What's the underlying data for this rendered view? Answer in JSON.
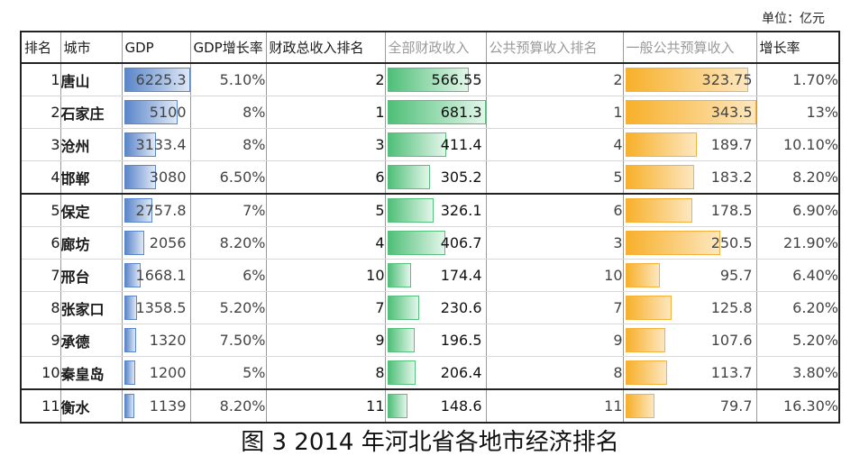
{
  "unit_label": "单位：亿元",
  "caption": "图 3   2014 年河北省各地市经济排名",
  "headers": [
    "排名",
    "城市",
    "GDP",
    "GDP增长率",
    "财政总收入排名",
    "全部财政收入",
    "公共预算收入排名",
    "一般公共预算收入",
    "增长率"
  ],
  "colors": {
    "gdp_bar": "#5b86c9",
    "revenue_bar": "#4fbf78",
    "budget_bar": "#f7b02a"
  },
  "rows": [
    {
      "rank": "1",
      "city": "唐山",
      "gdp": "6225.3",
      "gdp_growth": "5.10%",
      "fiscal_rank": "2",
      "total_revenue": "566.55",
      "budget_rank": "2",
      "budget_revenue": "323.75",
      "growth": "1.70%"
    },
    {
      "rank": "2",
      "city": "石家庄",
      "gdp": "5100",
      "gdp_growth": "8%",
      "fiscal_rank": "1",
      "total_revenue": "681.3",
      "budget_rank": "1",
      "budget_revenue": "343.5",
      "growth": "13%"
    },
    {
      "rank": "3",
      "city": "沧州",
      "gdp": "3133.4",
      "gdp_growth": "8%",
      "fiscal_rank": "3",
      "total_revenue": "411.4",
      "budget_rank": "4",
      "budget_revenue": "189.7",
      "growth": "10.10%"
    },
    {
      "rank": "4",
      "city": "邯郸",
      "gdp": "3080",
      "gdp_growth": "6.50%",
      "fiscal_rank": "6",
      "total_revenue": "305.2",
      "budget_rank": "5",
      "budget_revenue": "183.2",
      "growth": "8.20%"
    },
    {
      "rank": "5",
      "city": "保定",
      "gdp": "2757.8",
      "gdp_growth": "7%",
      "fiscal_rank": "5",
      "total_revenue": "326.1",
      "budget_rank": "6",
      "budget_revenue": "178.5",
      "growth": "6.90%"
    },
    {
      "rank": "6",
      "city": "廊坊",
      "gdp": "2056",
      "gdp_growth": "8.20%",
      "fiscal_rank": "4",
      "total_revenue": "406.7",
      "budget_rank": "3",
      "budget_revenue": "250.5",
      "growth": "21.90%"
    },
    {
      "rank": "7",
      "city": "邢台",
      "gdp": "1668.1",
      "gdp_growth": "6%",
      "fiscal_rank": "10",
      "total_revenue": "174.4",
      "budget_rank": "10",
      "budget_revenue": "95.7",
      "growth": "6.40%"
    },
    {
      "rank": "8",
      "city": "张家口",
      "gdp": "1358.5",
      "gdp_growth": "5.20%",
      "fiscal_rank": "7",
      "total_revenue": "230.6",
      "budget_rank": "7",
      "budget_revenue": "125.8",
      "growth": "6.20%"
    },
    {
      "rank": "9",
      "city": "承德",
      "gdp": "1320",
      "gdp_growth": "7.50%",
      "fiscal_rank": "9",
      "total_revenue": "196.5",
      "budget_rank": "9",
      "budget_revenue": "107.6",
      "growth": "5.20%"
    },
    {
      "rank": "10",
      "city": "秦皇岛",
      "gdp": "1200",
      "gdp_growth": "5%",
      "fiscal_rank": "8",
      "total_revenue": "206.4",
      "budget_rank": "8",
      "budget_revenue": "113.7",
      "growth": "3.80%"
    },
    {
      "rank": "11",
      "city": "衡水",
      "gdp": "1139",
      "gdp_growth": "8.20%",
      "fiscal_rank": "11",
      "total_revenue": "148.6",
      "budget_rank": "11",
      "budget_revenue": "79.7",
      "growth": "16.30%"
    }
  ]
}
